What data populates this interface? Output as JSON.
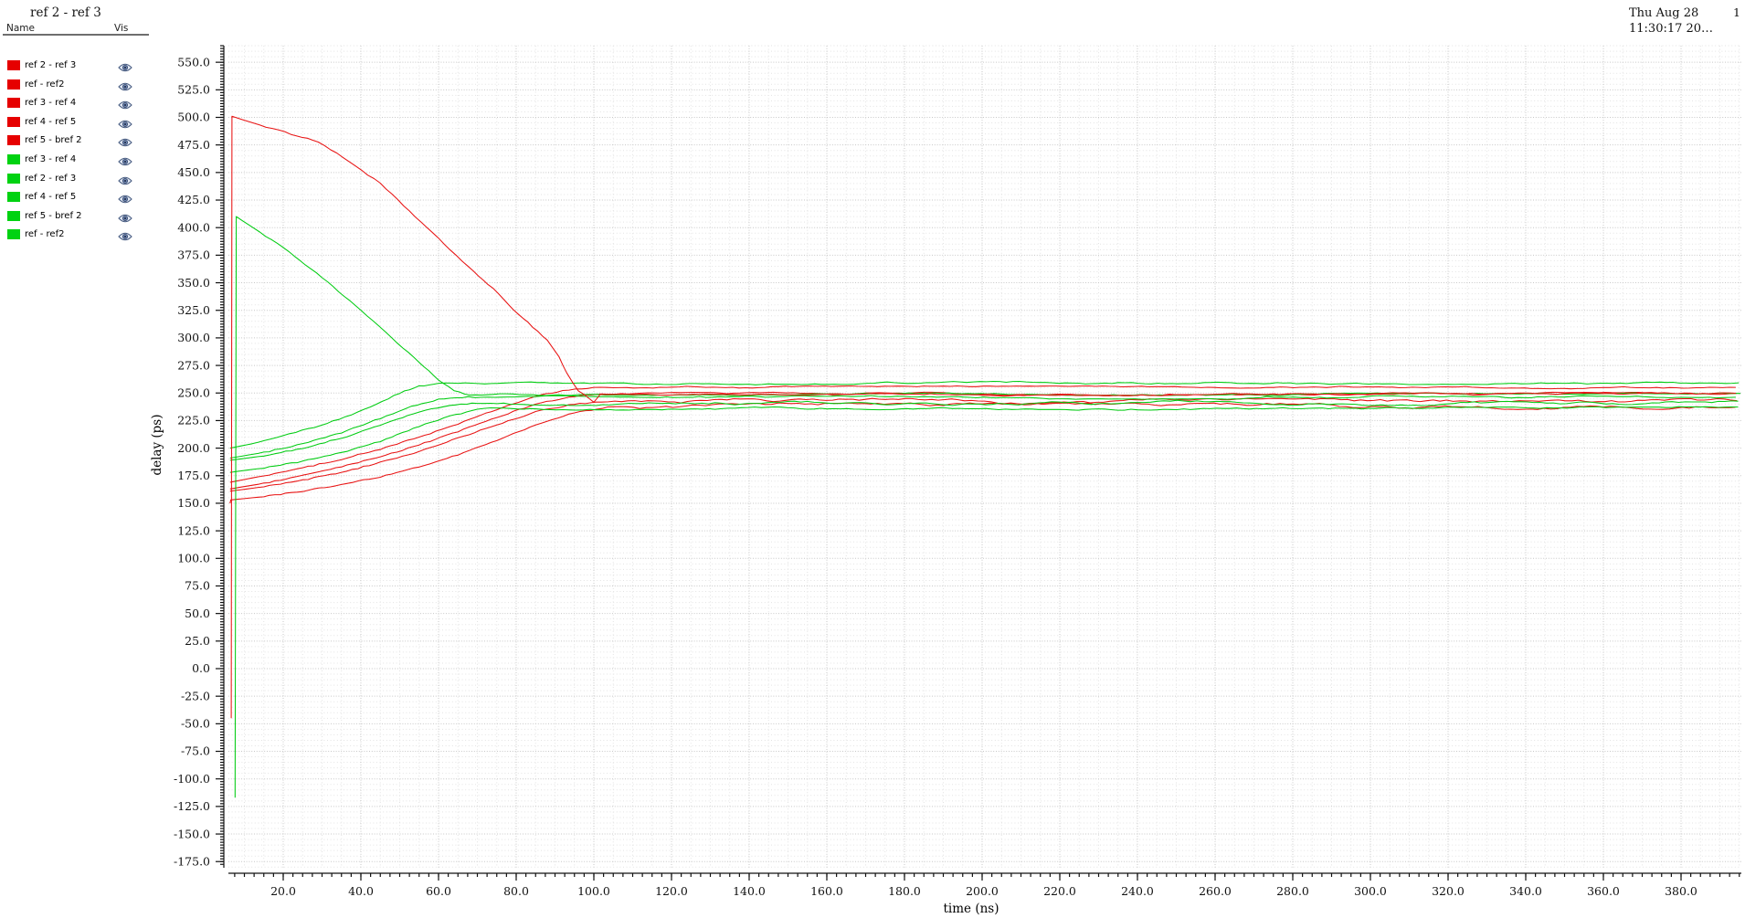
{
  "window": {
    "title": "ref 2 - ref 3",
    "date_line1": "Thu Aug 28",
    "date_line2": "11:30:17 20…",
    "page_number": "1"
  },
  "legend": {
    "name_header": "Name",
    "vis_header": "Vis",
    "eye_icon": "visibility-eye-icon",
    "items": [
      {
        "label": "ref 2 - ref 3",
        "color": "#e60000"
      },
      {
        "label": "ref - ref2",
        "color": "#e60000"
      },
      {
        "label": "ref 3 - ref 4",
        "color": "#e60000"
      },
      {
        "label": "ref 4 - ref 5",
        "color": "#e60000"
      },
      {
        "label": "ref 5 - bref 2",
        "color": "#e60000"
      },
      {
        "label": "ref 3 - ref 4",
        "color": "#00d211"
      },
      {
        "label": "ref 2 - ref 3",
        "color": "#00d211"
      },
      {
        "label": "ref 4 - ref 5",
        "color": "#00d211"
      },
      {
        "label": "ref 5 - bref 2",
        "color": "#00d211"
      },
      {
        "label": "ref - ref2",
        "color": "#00d211"
      }
    ]
  },
  "chart_data": {
    "type": "line",
    "title": "ref 2 - ref 3",
    "xlabel": "time (ns)",
    "ylabel": "delay (ps)",
    "xlim": [
      5.9,
      395.5
    ],
    "ylim": [
      -180,
      566
    ],
    "x_major_tick_start": 20,
    "x_major_tick_end": 380,
    "x_major_tick_step": 20,
    "y_major_tick_start": -175,
    "y_major_tick_end": 550,
    "y_major_tick_step": 25,
    "x_minor_tick_step": 2.5,
    "y_minor_tick_step": 2.5,
    "x_grid_minor_step": 5,
    "y_grid_minor_step": 5,
    "grid": "dotted",
    "legend_position": "top-left-panel",
    "colors": {
      "red": "#e81212",
      "green": "#00cc11"
    },
    "series": [
      {
        "name": "ref 2 - ref 3",
        "color": "red",
        "points": [
          [
            6.6,
            -45
          ],
          [
            6.8,
            501
          ],
          [
            14,
            493
          ],
          [
            22,
            485
          ],
          [
            29,
            478
          ],
          [
            37,
            460
          ],
          [
            45,
            440
          ],
          [
            51,
            420
          ],
          [
            57,
            400
          ],
          [
            63,
            380
          ],
          [
            69,
            360
          ],
          [
            74,
            345
          ],
          [
            78,
            330
          ],
          [
            83,
            314
          ],
          [
            88,
            298
          ],
          [
            91,
            283
          ],
          [
            93,
            268
          ],
          [
            96,
            252
          ],
          [
            100,
            242
          ]
        ],
        "settle": 249,
        "noise": 1.3
      },
      {
        "name": "ref - ref2",
        "color": "red",
        "points": [
          [
            6.3,
            169
          ],
          [
            15,
            175
          ],
          [
            25,
            182
          ],
          [
            35,
            190
          ],
          [
            45,
            199
          ],
          [
            55,
            210
          ],
          [
            65,
            222
          ],
          [
            75,
            235
          ],
          [
            85,
            247
          ],
          [
            92,
            252
          ],
          [
            100,
            255
          ]
        ],
        "settle": 255,
        "noise": 1.2
      },
      {
        "name": "ref 3 - ref 4",
        "color": "red",
        "points": [
          [
            6.3,
            163
          ],
          [
            15,
            168
          ],
          [
            25,
            175
          ],
          [
            35,
            183
          ],
          [
            45,
            192
          ],
          [
            55,
            203
          ],
          [
            65,
            215
          ],
          [
            75,
            228
          ],
          [
            85,
            240
          ],
          [
            95,
            247
          ],
          [
            102,
            249
          ]
        ],
        "settle": 249,
        "noise": 1.5
      },
      {
        "name": "ref 4 - ref 5",
        "color": "red",
        "points": [
          [
            6.3,
            161
          ],
          [
            15,
            165
          ],
          [
            25,
            171
          ],
          [
            35,
            178
          ],
          [
            45,
            187
          ],
          [
            55,
            197
          ],
          [
            65,
            209
          ],
          [
            75,
            221
          ],
          [
            85,
            233
          ],
          [
            95,
            240
          ],
          [
            102,
            242
          ]
        ],
        "settle": 242,
        "noise": 2.8
      },
      {
        "name": "ref 5 - bref 2",
        "color": "red",
        "points": [
          [
            6.3,
            150
          ],
          [
            6.5,
            153
          ],
          [
            15,
            156
          ],
          [
            25,
            161
          ],
          [
            35,
            167
          ],
          [
            45,
            174
          ],
          [
            55,
            183
          ],
          [
            65,
            194
          ],
          [
            75,
            207
          ],
          [
            85,
            221
          ],
          [
            95,
            232
          ],
          [
            105,
            238
          ]
        ],
        "settle": 238,
        "noise": 2.8
      },
      {
        "name": "ref 3 - ref 4",
        "color": "green",
        "points": [
          [
            7.6,
            -117
          ],
          [
            7.9,
            410
          ],
          [
            20,
            382
          ],
          [
            30,
            355
          ],
          [
            40,
            325
          ],
          [
            48,
            300
          ],
          [
            55,
            278
          ],
          [
            60,
            262
          ],
          [
            64,
            252
          ],
          [
            68,
            248
          ],
          [
            74,
            249
          ]
        ],
        "settle": 249,
        "noise": 1.1
      },
      {
        "name": "ref 2 - ref 3",
        "color": "green",
        "points": [
          [
            6.3,
            200
          ],
          [
            12,
            204
          ],
          [
            20,
            211
          ],
          [
            28,
            219
          ],
          [
            36,
            228
          ],
          [
            44,
            240
          ],
          [
            50,
            250
          ],
          [
            55,
            256
          ],
          [
            60,
            259
          ]
        ],
        "settle": 259,
        "noise": 1.3
      },
      {
        "name": "ref 4 - ref 5",
        "color": "green",
        "points": [
          [
            6.3,
            191
          ],
          [
            15,
            196
          ],
          [
            25,
            204
          ],
          [
            35,
            214
          ],
          [
            45,
            227
          ],
          [
            53,
            238
          ],
          [
            60,
            244
          ],
          [
            66,
            246
          ]
        ],
        "settle": 246,
        "noise": 1.5
      },
      {
        "name": "ref 5 - bref 2",
        "color": "green",
        "points": [
          [
            6.3,
            189
          ],
          [
            15,
            193
          ],
          [
            25,
            200
          ],
          [
            35,
            209
          ],
          [
            45,
            221
          ],
          [
            55,
            233
          ],
          [
            63,
            239
          ],
          [
            70,
            241
          ]
        ],
        "settle": 241,
        "noise": 2.3
      },
      {
        "name": "ref - ref2",
        "color": "green",
        "points": [
          [
            6.3,
            178
          ],
          [
            15,
            182
          ],
          [
            25,
            188
          ],
          [
            35,
            196
          ],
          [
            45,
            206
          ],
          [
            55,
            220
          ],
          [
            63,
            229
          ],
          [
            70,
            235
          ]
        ],
        "settle": 236,
        "noise": 1.4
      }
    ]
  }
}
